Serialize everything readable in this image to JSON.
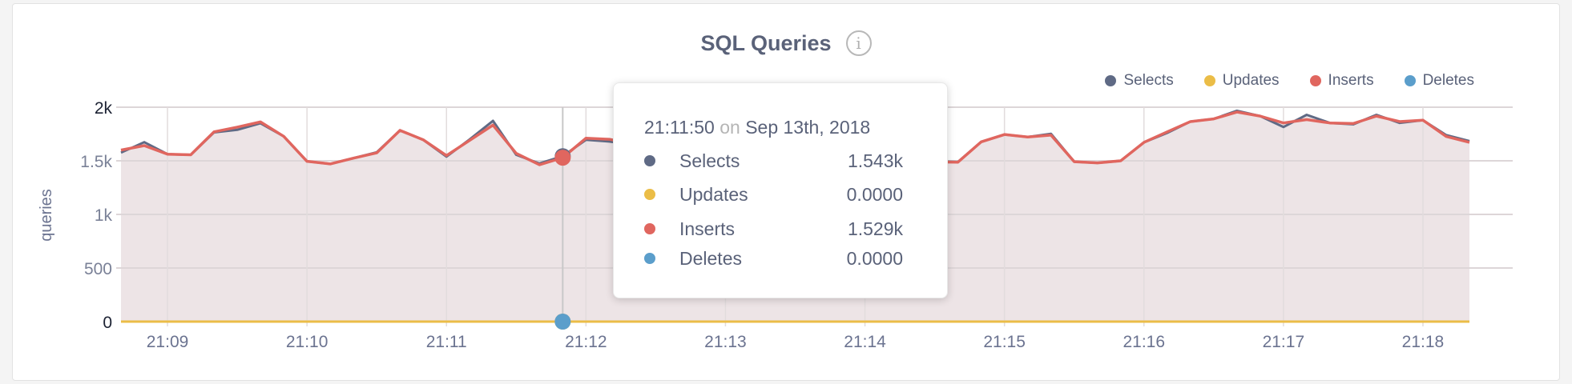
{
  "panel": {
    "title": "SQL Queries",
    "info_icon": "i"
  },
  "tooltip": {
    "time": "21:11:50",
    "on": "on",
    "date": "Sep 13th, 2018",
    "rows": [
      {
        "label": "Selects",
        "value": "1.543k",
        "color": "#5f6a85"
      },
      {
        "label": "Updates",
        "value": "0.0000",
        "color": "#ebbd47"
      },
      {
        "label": "Inserts",
        "value": "1.529k",
        "color": "#e0665f"
      },
      {
        "label": "Deletes",
        "value": "0.0000",
        "color": "#5b9ecb"
      }
    ]
  },
  "chart_data": {
    "type": "line",
    "title": "SQL Queries",
    "ylabel": "queries",
    "xlabel": "",
    "ylim": [
      0,
      2000
    ],
    "yticks": [
      "0",
      "500",
      "1k",
      "1.5k",
      "2k"
    ],
    "ytick_values": [
      0,
      500,
      1000,
      1500,
      2000
    ],
    "xticks": [
      "21:09",
      "21:10",
      "21:11",
      "21:12",
      "21:13",
      "21:14",
      "21:15",
      "21:16",
      "21:17",
      "21:18"
    ],
    "grid": true,
    "legend_position": "top-right",
    "hover_time": "21:11:50",
    "x": [
      "21:08:40",
      "21:08:50",
      "21:09:00",
      "21:09:10",
      "21:09:20",
      "21:09:30",
      "21:09:40",
      "21:09:50",
      "21:10:00",
      "21:10:10",
      "21:10:20",
      "21:10:30",
      "21:10:40",
      "21:10:50",
      "21:11:00",
      "21:11:10",
      "21:11:20",
      "21:11:30",
      "21:11:40",
      "21:11:50",
      "21:12:00",
      "21:12:10",
      "21:12:20",
      "21:12:30",
      "21:12:40",
      "21:12:50",
      "21:13:00",
      "21:13:10",
      "21:13:20",
      "21:13:30",
      "21:13:40",
      "21:13:50",
      "21:14:00",
      "21:14:10",
      "21:14:20",
      "21:14:30",
      "21:14:40",
      "21:14:50",
      "21:15:00",
      "21:15:10",
      "21:15:20",
      "21:15:30",
      "21:15:40",
      "21:15:50",
      "21:16:00",
      "21:16:10",
      "21:16:20",
      "21:16:30",
      "21:16:40",
      "21:16:50",
      "21:17:00",
      "21:17:10",
      "21:17:20",
      "21:17:30",
      "21:17:40",
      "21:17:50",
      "21:18:00",
      "21:18:10",
      "21:18:20"
    ],
    "series": [
      {
        "name": "Selects",
        "color": "#5f6a85",
        "values": [
          1576,
          1674,
          1562,
          1556,
          1765,
          1789,
          1850,
          1728,
          1495,
          1471,
          1525,
          1580,
          1784,
          1696,
          1539,
          1700,
          1873,
          1556,
          1475,
          1543,
          1696,
          1680,
          1650,
          1575,
          1520,
          1600,
          1700,
          1770,
          1650,
          1560,
          1600,
          1710,
          1620,
          1550,
          1500,
          1495,
          1490,
          1677,
          1745,
          1722,
          1752,
          1492,
          1480,
          1500,
          1672,
          1760,
          1866,
          1891,
          1967,
          1917,
          1815,
          1929,
          1853,
          1840,
          1929,
          1853,
          1879,
          1740,
          1684
        ]
      },
      {
        "name": "Updates",
        "color": "#ebbd47",
        "values": [
          0,
          0,
          0,
          0,
          0,
          0,
          0,
          0,
          0,
          0,
          0,
          0,
          0,
          0,
          0,
          0,
          0,
          0,
          0,
          0,
          0,
          0,
          0,
          0,
          0,
          0,
          0,
          0,
          0,
          0,
          0,
          0,
          0,
          0,
          0,
          0,
          0,
          0,
          0,
          0,
          0,
          0,
          0,
          0,
          0,
          0,
          0,
          0,
          0,
          0,
          0,
          0,
          0,
          0,
          0,
          0,
          0,
          0,
          0
        ]
      },
      {
        "name": "Inserts",
        "color": "#e0665f",
        "values": [
          1600,
          1642,
          1562,
          1556,
          1770,
          1814,
          1863,
          1728,
          1495,
          1471,
          1525,
          1574,
          1784,
          1696,
          1549,
          1691,
          1833,
          1569,
          1463,
          1529,
          1711,
          1701,
          1660,
          1585,
          1525,
          1605,
          1705,
          1775,
          1655,
          1565,
          1605,
          1715,
          1625,
          1555,
          1505,
          1490,
          1487,
          1677,
          1745,
          1722,
          1740,
          1492,
          1480,
          1500,
          1672,
          1770,
          1866,
          1891,
          1955,
          1917,
          1853,
          1884,
          1853,
          1848,
          1917,
          1866,
          1879,
          1727,
          1672
        ]
      },
      {
        "name": "Deletes",
        "color": "#5b9ecb",
        "values": [
          0,
          0,
          0,
          0,
          0,
          0,
          0,
          0,
          0,
          0,
          0,
          0,
          0,
          0,
          0,
          0,
          0,
          0,
          0,
          0,
          0,
          0,
          0,
          0,
          0,
          0,
          0,
          0,
          0,
          0,
          0,
          0,
          0,
          0,
          0,
          0,
          0,
          0,
          0,
          0,
          0,
          0,
          0,
          0,
          0,
          0,
          0,
          0,
          0,
          0,
          0,
          0,
          0,
          0,
          0,
          0,
          0,
          0,
          0
        ]
      }
    ],
    "area_fill": "#ede4e6"
  }
}
